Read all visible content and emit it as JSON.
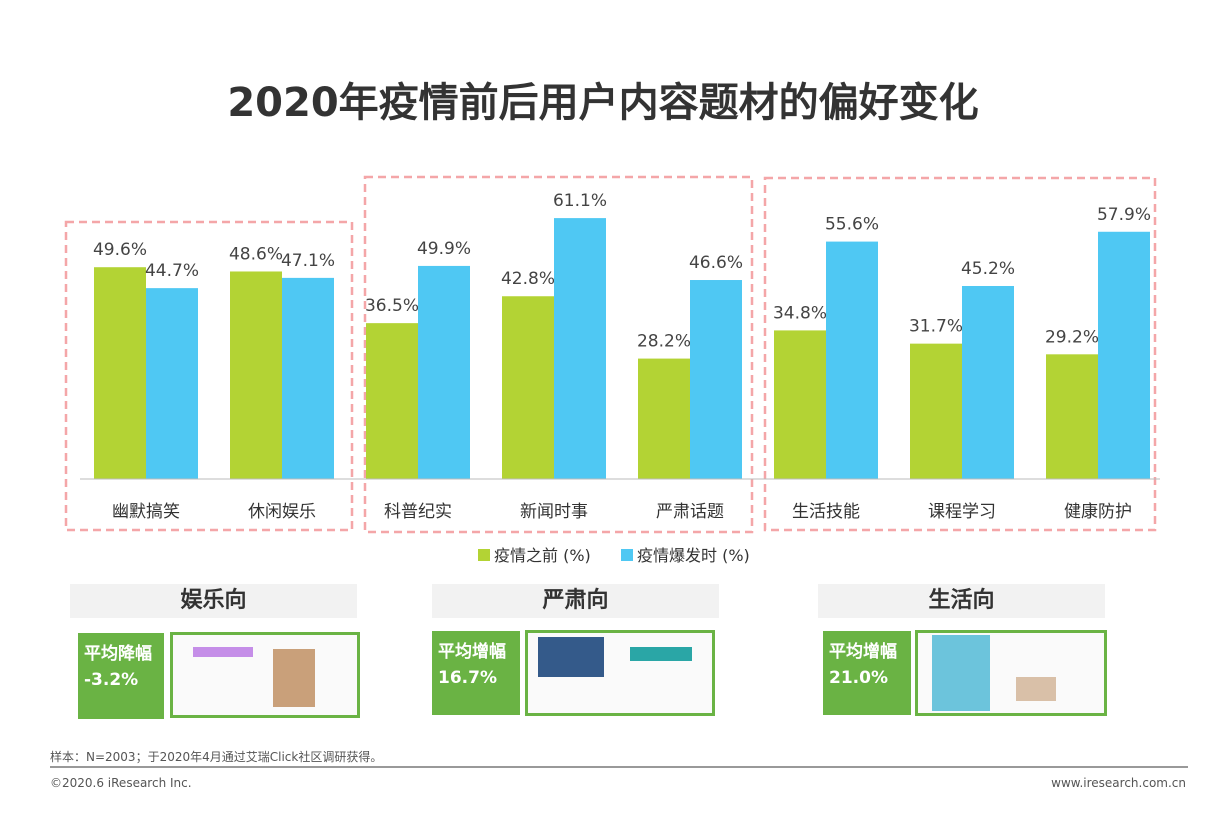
{
  "chart_data": {
    "type": "bar",
    "title": "2020年疫情前后用户内容题材的偏好变化",
    "categories": [
      "幽默搞笑",
      "休闲娱乐",
      "科普纪实",
      "新闻时事",
      "严肃话题",
      "生活技能",
      "课程学习",
      "健康防护"
    ],
    "series": [
      {
        "name": "疫情之前 (%)",
        "color": "#b3d334",
        "values": [
          49.6,
          48.6,
          36.5,
          42.8,
          28.2,
          34.8,
          31.7,
          29.2
        ]
      },
      {
        "name": "疫情爆发时 (%)",
        "color": "#4fc8f3",
        "values": [
          44.7,
          47.1,
          49.9,
          61.1,
          46.6,
          55.6,
          45.2,
          57.9
        ]
      }
    ],
    "ylim": [
      0,
      70
    ],
    "grid": false,
    "legend": "bottom",
    "group_box_color": "#f4a6a8"
  },
  "groups": [
    {
      "name": "娱乐向",
      "label": "平均降幅",
      "value": "-3.2%"
    },
    {
      "name": "严肃向",
      "label": "平均增幅",
      "value": "16.7%"
    },
    {
      "name": "生活向",
      "label": "平均增幅",
      "value": "21.0%"
    }
  ],
  "footer": {
    "note": "样本：N=2003；于2020年4月通过艾瑞Click社区调研获得。",
    "copyright": "©2020.6 iResearch Inc.",
    "site": "www.iresearch.com.cn"
  }
}
